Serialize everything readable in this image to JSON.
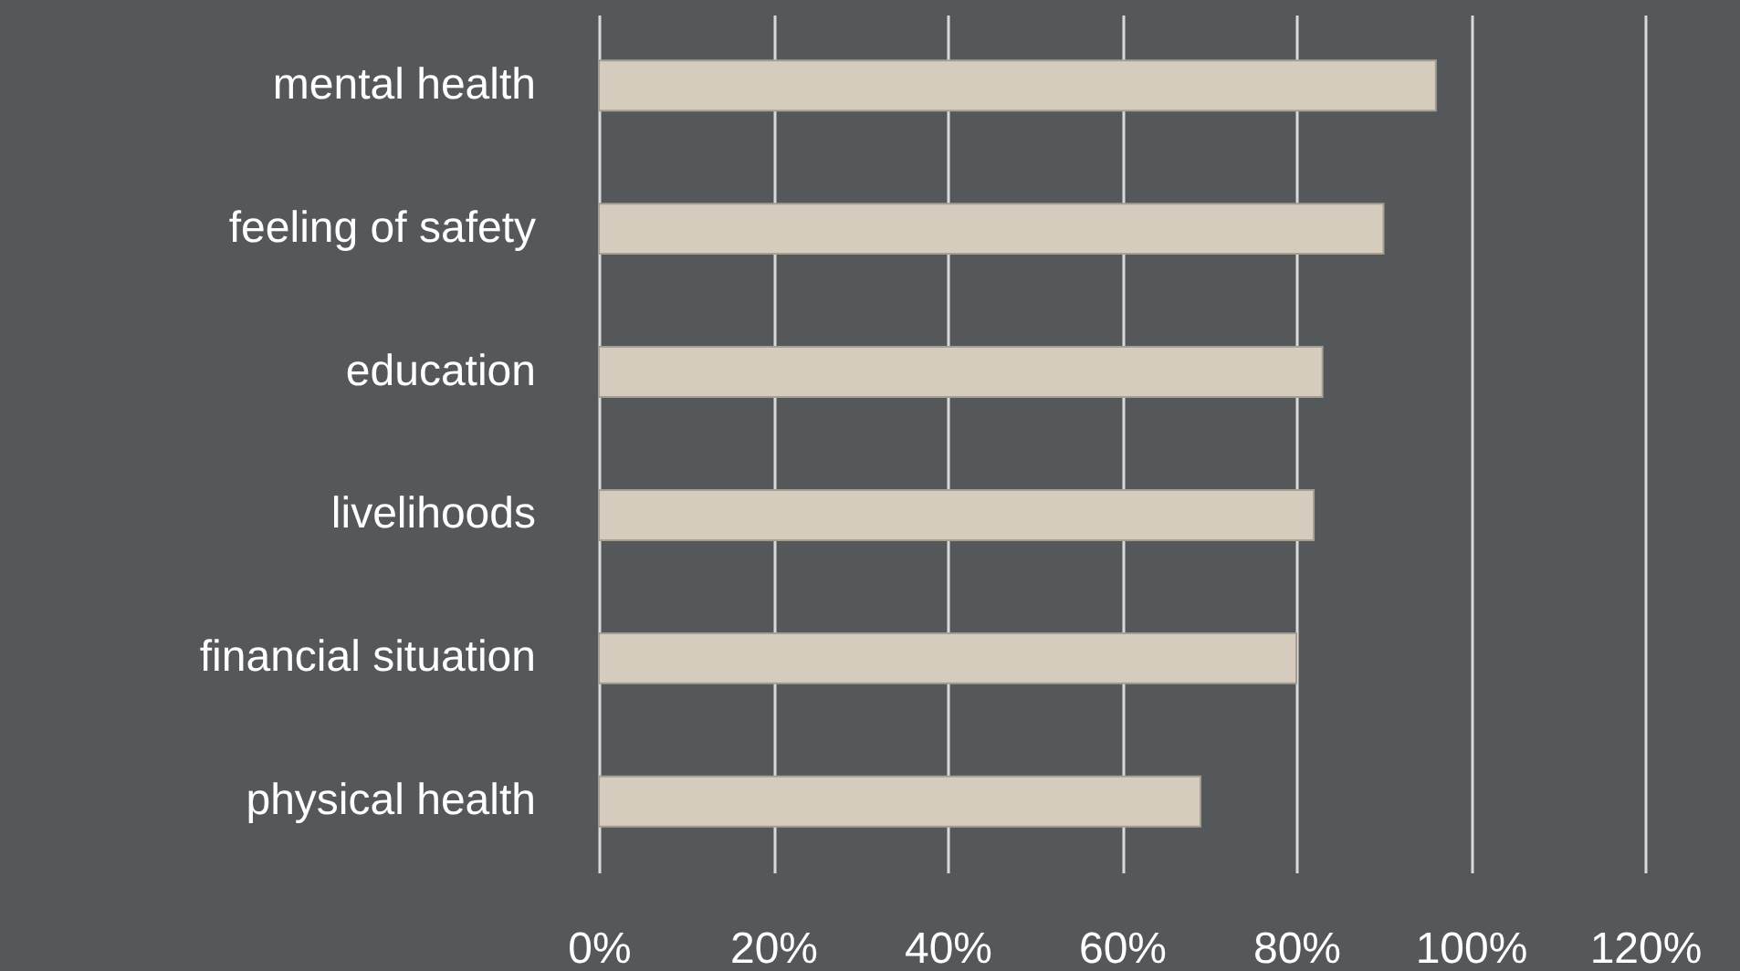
{
  "chart_data": {
    "type": "bar",
    "orientation": "horizontal",
    "categories": [
      "mental health",
      "feeling of safety",
      "education",
      "livelihoods",
      "financial situation",
      "physical health"
    ],
    "values": [
      96,
      90,
      83,
      82,
      80,
      69
    ],
    "color": "#d5ccbe",
    "xlim": [
      0,
      120
    ],
    "xticks": [
      {
        "value": 0,
        "label": "0%"
      },
      {
        "value": 20,
        "label": "20%"
      },
      {
        "value": 40,
        "label": "40%"
      },
      {
        "value": 60,
        "label": "60%"
      },
      {
        "value": 80,
        "label": "80%"
      },
      {
        "value": 100,
        "label": "100%"
      },
      {
        "value": 120,
        "label": "120%"
      }
    ],
    "grid": "x"
  }
}
